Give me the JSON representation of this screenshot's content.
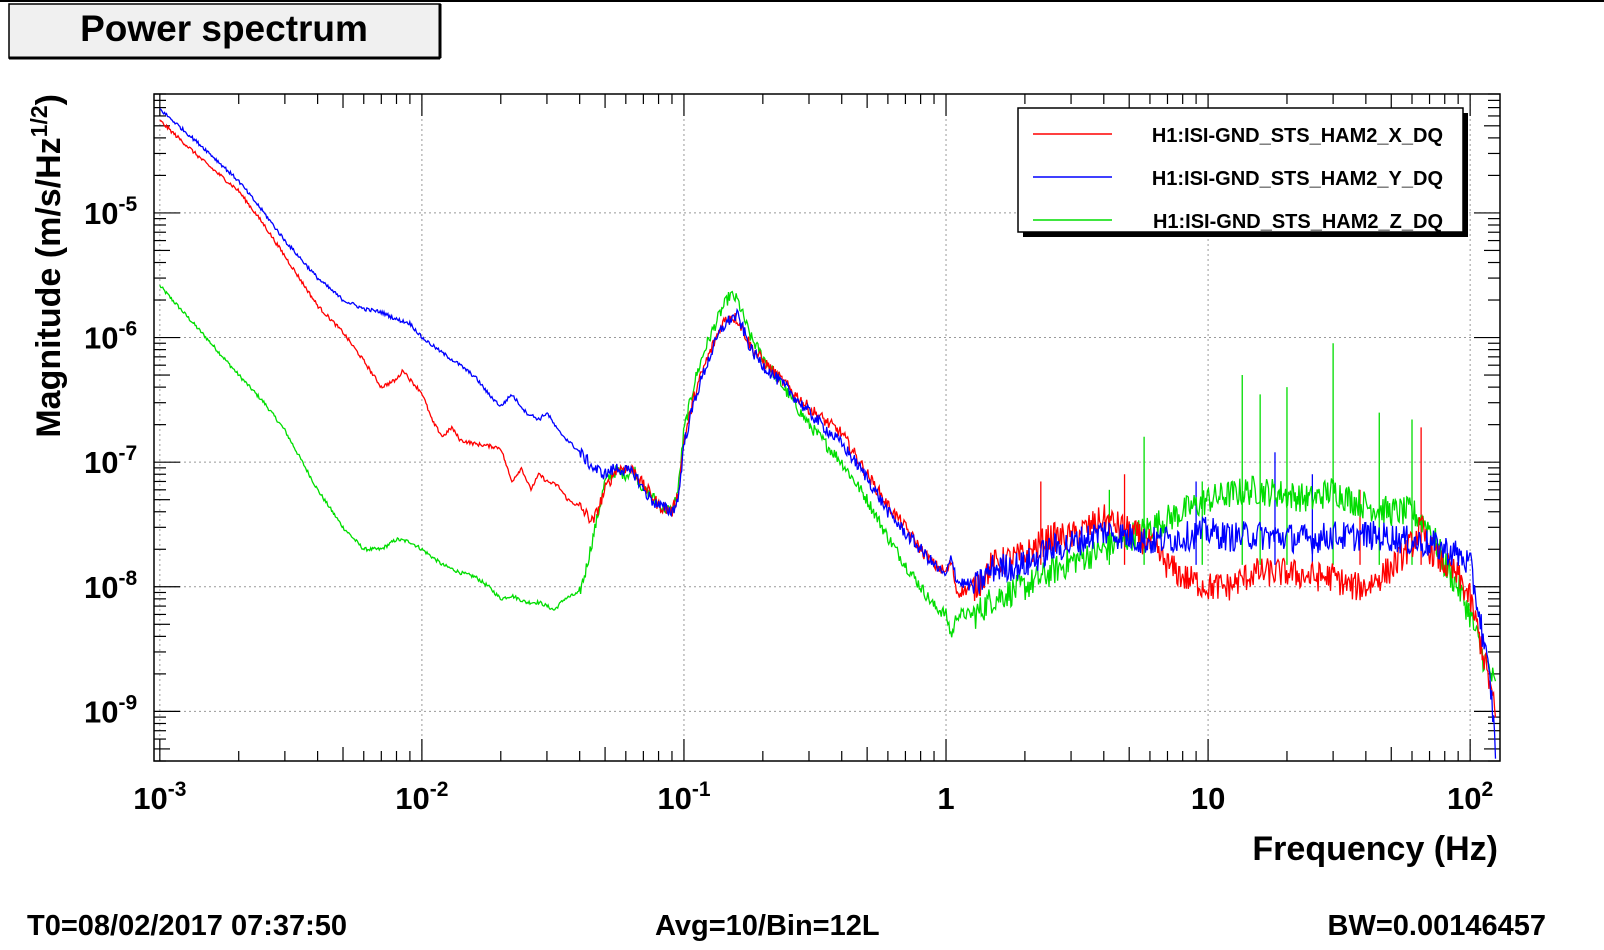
{
  "chart_data": {
    "type": "line",
    "title": "Power spectrum",
    "xlabel": "Frequency (Hz)",
    "ylabel": "Magnitude (m/s/Hz^1/2)",
    "xscale": "log",
    "yscale": "log",
    "xlim": [
      0.00095,
      130
    ],
    "ylim": [
      4e-10,
      9e-05
    ],
    "grid": true,
    "legend_position": "top-right",
    "x_ticks": [
      {
        "value": 0.001,
        "base": "10",
        "exp": "-3"
      },
      {
        "value": 0.01,
        "base": "10",
        "exp": "-2"
      },
      {
        "value": 0.1,
        "base": "10",
        "exp": "-1"
      },
      {
        "value": 1,
        "base": "1",
        "exp": ""
      },
      {
        "value": 10,
        "base": "10",
        "exp": ""
      },
      {
        "value": 100,
        "base": "10",
        "exp": "2"
      }
    ],
    "y_ticks": [
      {
        "value": 1e-05,
        "base": "10",
        "exp": "-5"
      },
      {
        "value": 1e-06,
        "base": "10",
        "exp": "-6"
      },
      {
        "value": 1e-07,
        "base": "10",
        "exp": "-7"
      },
      {
        "value": 1e-08,
        "base": "10",
        "exp": "-8"
      },
      {
        "value": 1e-09,
        "base": "10",
        "exp": "-9"
      }
    ],
    "series": [
      {
        "name": "H1:ISI-GND_STS_HAM2_X_DQ",
        "color": "#ff0000",
        "points": [
          [
            0.001,
            5.5e-05
          ],
          [
            0.0015,
            2.5e-05
          ],
          [
            0.002,
            1.5e-05
          ],
          [
            0.0025,
            8e-06
          ],
          [
            0.003,
            4.5e-06
          ],
          [
            0.004,
            1.8e-06
          ],
          [
            0.005,
            1.1e-06
          ],
          [
            0.006,
            6.5e-07
          ],
          [
            0.007,
            4e-07
          ],
          [
            0.008,
            4.6e-07
          ],
          [
            0.0085,
            5.5e-07
          ],
          [
            0.009,
            4.6e-07
          ],
          [
            0.01,
            3.6e-07
          ],
          [
            0.011,
            2.1e-07
          ],
          [
            0.012,
            1.6e-07
          ],
          [
            0.013,
            1.9e-07
          ],
          [
            0.014,
            1.5e-07
          ],
          [
            0.016,
            1.4e-07
          ],
          [
            0.018,
            1.35e-07
          ],
          [
            0.02,
            1.3e-07
          ],
          [
            0.022,
            7e-08
          ],
          [
            0.024,
            9e-08
          ],
          [
            0.026,
            6e-08
          ],
          [
            0.028,
            8e-08
          ],
          [
            0.03,
            7e-08
          ],
          [
            0.033,
            6.5e-08
          ],
          [
            0.036,
            5e-08
          ],
          [
            0.04,
            4.4e-08
          ],
          [
            0.045,
            3.3e-08
          ],
          [
            0.05,
            6e-08
          ],
          [
            0.055,
            8.8e-08
          ],
          [
            0.06,
            9e-08
          ],
          [
            0.065,
            8.5e-08
          ],
          [
            0.07,
            6.5e-08
          ],
          [
            0.075,
            5.5e-08
          ],
          [
            0.08,
            4.5e-08
          ],
          [
            0.09,
            4e-08
          ],
          [
            0.095,
            5.5e-08
          ],
          [
            0.1,
            1.5e-07
          ],
          [
            0.11,
            3.5e-07
          ],
          [
            0.12,
            6e-07
          ],
          [
            0.13,
            9e-07
          ],
          [
            0.14,
            1.3e-06
          ],
          [
            0.15,
            1.5e-06
          ],
          [
            0.16,
            1.4e-06
          ],
          [
            0.17,
            1.1e-06
          ],
          [
            0.18,
            8.5e-07
          ],
          [
            0.2,
            6.5e-07
          ],
          [
            0.25,
            4e-07
          ],
          [
            0.3,
            2.7e-07
          ],
          [
            0.4,
            1.7e-07
          ],
          [
            0.5,
            8e-08
          ],
          [
            0.6,
            4.5e-08
          ],
          [
            0.7,
            3e-08
          ],
          [
            0.8,
            2e-08
          ],
          [
            0.9,
            1.5e-08
          ],
          [
            1.0,
            1.3e-08
          ],
          [
            1.05,
            1.6e-08
          ],
          [
            1.1,
            9e-09
          ],
          [
            1.3,
            1e-08
          ],
          [
            1.5,
            1.5e-08
          ],
          [
            2.0,
            1.8e-08
          ],
          [
            2.5,
            2.5e-08
          ],
          [
            3.0,
            2.5e-08
          ],
          [
            4.0,
            3.5e-08
          ],
          [
            5.0,
            2.8e-08
          ],
          [
            6.0,
            2.2e-08
          ],
          [
            7.0,
            1.5e-08
          ],
          [
            8.0,
            1.2e-08
          ],
          [
            10.0,
            1e-08
          ],
          [
            12.0,
            1e-08
          ],
          [
            15.0,
            1.3e-08
          ],
          [
            20.0,
            1.3e-08
          ],
          [
            25.0,
            1.2e-08
          ],
          [
            30.0,
            1.2e-08
          ],
          [
            35.0,
            1e-08
          ],
          [
            40.0,
            1e-08
          ],
          [
            50.0,
            1.4e-08
          ],
          [
            60.0,
            2.2e-08
          ],
          [
            65.0,
            3e-08
          ],
          [
            70.0,
            2e-08
          ],
          [
            80.0,
            1.5e-08
          ],
          [
            90.0,
            1.2e-08
          ],
          [
            100.0,
            8e-09
          ],
          [
            110.0,
            3.5e-09
          ],
          [
            120.0,
            1.5e-09
          ],
          [
            125.0,
            9e-10
          ]
        ]
      },
      {
        "name": "H1:ISI-GND_STS_HAM2_Y_DQ",
        "color": "#0000ff",
        "points": [
          [
            0.001,
            6.8e-05
          ],
          [
            0.0015,
            3.2e-05
          ],
          [
            0.002,
            1.8e-05
          ],
          [
            0.0025,
            1e-05
          ],
          [
            0.003,
            6e-06
          ],
          [
            0.004,
            3e-06
          ],
          [
            0.005,
            2e-06
          ],
          [
            0.006,
            1.7e-06
          ],
          [
            0.007,
            1.6e-06
          ],
          [
            0.008,
            1.4e-06
          ],
          [
            0.009,
            1.3e-06
          ],
          [
            0.01,
            1e-06
          ],
          [
            0.012,
            7.5e-07
          ],
          [
            0.014,
            6e-07
          ],
          [
            0.016,
            4.8e-07
          ],
          [
            0.018,
            3.5e-07
          ],
          [
            0.02,
            2.8e-07
          ],
          [
            0.022,
            3.5e-07
          ],
          [
            0.025,
            2.5e-07
          ],
          [
            0.028,
            2.2e-07
          ],
          [
            0.03,
            2.5e-07
          ],
          [
            0.033,
            1.8e-07
          ],
          [
            0.036,
            1.5e-07
          ],
          [
            0.04,
            1.2e-07
          ],
          [
            0.045,
            9e-08
          ],
          [
            0.05,
            8e-08
          ],
          [
            0.055,
            9e-08
          ],
          [
            0.06,
            8.5e-08
          ],
          [
            0.065,
            8e-08
          ],
          [
            0.07,
            6e-08
          ],
          [
            0.075,
            5e-08
          ],
          [
            0.08,
            4.5e-08
          ],
          [
            0.09,
            4e-08
          ],
          [
            0.095,
            5e-08
          ],
          [
            0.1,
            1.4e-07
          ],
          [
            0.11,
            3.2e-07
          ],
          [
            0.12,
            5.5e-07
          ],
          [
            0.13,
            8.5e-07
          ],
          [
            0.14,
            1.2e-06
          ],
          [
            0.15,
            1.4e-06
          ],
          [
            0.16,
            1.5e-06
          ],
          [
            0.17,
            1.1e-06
          ],
          [
            0.18,
            8e-07
          ],
          [
            0.2,
            6e-07
          ],
          [
            0.25,
            3.8e-07
          ],
          [
            0.3,
            2.5e-07
          ],
          [
            0.4,
            1.4e-07
          ],
          [
            0.5,
            7.5e-08
          ],
          [
            0.6,
            4e-08
          ],
          [
            0.7,
            2.7e-08
          ],
          [
            0.8,
            2e-08
          ],
          [
            0.9,
            1.5e-08
          ],
          [
            1.0,
            1.2e-08
          ],
          [
            1.05,
            1.8e-08
          ],
          [
            1.1,
            1.1e-08
          ],
          [
            1.3,
            1e-08
          ],
          [
            1.5,
            1.4e-08
          ],
          [
            2.0,
            1.5e-08
          ],
          [
            2.5,
            2e-08
          ],
          [
            3.0,
            2.2e-08
          ],
          [
            4.0,
            2.8e-08
          ],
          [
            5.0,
            2.5e-08
          ],
          [
            6.0,
            2.3e-08
          ],
          [
            8.0,
            2.5e-08
          ],
          [
            10.0,
            2.8e-08
          ],
          [
            12.0,
            2.5e-08
          ],
          [
            15.0,
            2.6e-08
          ],
          [
            20.0,
            2.5e-08
          ],
          [
            25.0,
            2.4e-08
          ],
          [
            30.0,
            2.6e-08
          ],
          [
            35.0,
            2.5e-08
          ],
          [
            40.0,
            2.6e-08
          ],
          [
            50.0,
            2.5e-08
          ],
          [
            60.0,
            2.3e-08
          ],
          [
            70.0,
            2.2e-08
          ],
          [
            80.0,
            2e-08
          ],
          [
            90.0,
            1.8e-08
          ],
          [
            100.0,
            1.5e-08
          ],
          [
            110.0,
            5e-09
          ],
          [
            120.0,
            1.5e-09
          ],
          [
            125.0,
            5e-10
          ]
        ]
      },
      {
        "name": "H1:ISI-GND_STS_HAM2_Z_DQ",
        "color": "#00dd00",
        "points": [
          [
            0.001,
            2.6e-06
          ],
          [
            0.0015,
            1e-06
          ],
          [
            0.002,
            5e-07
          ],
          [
            0.0025,
            3e-07
          ],
          [
            0.003,
            1.8e-07
          ],
          [
            0.004,
            6e-08
          ],
          [
            0.005,
            3e-08
          ],
          [
            0.006,
            2e-08
          ],
          [
            0.007,
            2e-08
          ],
          [
            0.008,
            2.4e-08
          ],
          [
            0.009,
            2.3e-08
          ],
          [
            0.01,
            2e-08
          ],
          [
            0.012,
            1.5e-08
          ],
          [
            0.014,
            1.3e-08
          ],
          [
            0.016,
            1.2e-08
          ],
          [
            0.018,
            1e-08
          ],
          [
            0.02,
            8e-09
          ],
          [
            0.022,
            8.5e-09
          ],
          [
            0.025,
            7.5e-09
          ],
          [
            0.028,
            7.5e-09
          ],
          [
            0.03,
            7e-09
          ],
          [
            0.032,
            6.5e-09
          ],
          [
            0.035,
            8e-09
          ],
          [
            0.04,
            9e-09
          ],
          [
            0.042,
            1.3e-08
          ],
          [
            0.045,
            2.5e-08
          ],
          [
            0.05,
            7e-08
          ],
          [
            0.055,
            8.5e-08
          ],
          [
            0.06,
            8e-08
          ],
          [
            0.065,
            8.5e-08
          ],
          [
            0.07,
            6e-08
          ],
          [
            0.075,
            5.5e-08
          ],
          [
            0.08,
            4.5e-08
          ],
          [
            0.09,
            4e-08
          ],
          [
            0.095,
            6e-08
          ],
          [
            0.1,
            1.8e-07
          ],
          [
            0.11,
            4.5e-07
          ],
          [
            0.12,
            8e-07
          ],
          [
            0.13,
            1.2e-06
          ],
          [
            0.14,
            1.7e-06
          ],
          [
            0.15,
            2.2e-06
          ],
          [
            0.16,
            2e-06
          ],
          [
            0.17,
            1.4e-06
          ],
          [
            0.18,
            1e-06
          ],
          [
            0.2,
            7e-07
          ],
          [
            0.25,
            3.5e-07
          ],
          [
            0.3,
            2e-07
          ],
          [
            0.4,
            1e-07
          ],
          [
            0.5,
            5e-08
          ],
          [
            0.6,
            2.5e-08
          ],
          [
            0.7,
            1.5e-08
          ],
          [
            0.8,
            1e-08
          ],
          [
            0.9,
            7e-09
          ],
          [
            1.0,
            6e-09
          ],
          [
            1.05,
            4e-09
          ],
          [
            1.1,
            6e-09
          ],
          [
            1.3,
            6e-09
          ],
          [
            1.5,
            8e-09
          ],
          [
            2.0,
            1e-08
          ],
          [
            2.5,
            1.3e-08
          ],
          [
            3.0,
            1.6e-08
          ],
          [
            4.0,
            2e-08
          ],
          [
            5.0,
            2.5e-08
          ],
          [
            6.0,
            3e-08
          ],
          [
            8.0,
            4e-08
          ],
          [
            10.0,
            5e-08
          ],
          [
            12.0,
            5.5e-08
          ],
          [
            15.0,
            6e-08
          ],
          [
            20.0,
            5.5e-08
          ],
          [
            25.0,
            5e-08
          ],
          [
            30.0,
            6e-08
          ],
          [
            35.0,
            5e-08
          ],
          [
            40.0,
            4.5e-08
          ],
          [
            50.0,
            4e-08
          ],
          [
            60.0,
            4e-08
          ],
          [
            70.0,
            3e-08
          ],
          [
            80.0,
            1.5e-08
          ],
          [
            90.0,
            1e-08
          ],
          [
            100.0,
            6e-09
          ],
          [
            110.0,
            3e-09
          ],
          [
            120.0,
            2e-09
          ],
          [
            125.0,
            1.5e-09
          ]
        ]
      }
    ],
    "spikes": [
      {
        "f": 5.7,
        "v": 1.6e-07,
        "color": "#00dd00"
      },
      {
        "f": 13.5,
        "v": 5e-07,
        "color": "#00dd00"
      },
      {
        "f": 15.8,
        "v": 3.5e-07,
        "color": "#00dd00"
      },
      {
        "f": 20.0,
        "v": 4e-07,
        "color": "#00dd00"
      },
      {
        "f": 30.0,
        "v": 9e-07,
        "color": "#00dd00"
      },
      {
        "f": 45.0,
        "v": 2.5e-07,
        "color": "#00dd00"
      },
      {
        "f": 60.0,
        "v": 2.2e-07,
        "color": "#00dd00"
      },
      {
        "f": 4.2,
        "v": 6e-08,
        "color": "#00dd00"
      },
      {
        "f": 9.5,
        "v": 7e-08,
        "color": "#00dd00"
      },
      {
        "f": 2.3,
        "v": 7e-08,
        "color": "#ff0000"
      },
      {
        "f": 4.8,
        "v": 8e-08,
        "color": "#ff0000"
      },
      {
        "f": 65.0,
        "v": 1.9e-07,
        "color": "#ff0000"
      },
      {
        "f": 38.0,
        "v": 6e-08,
        "color": "#ff0000"
      },
      {
        "f": 9.0,
        "v": 7e-08,
        "color": "#0000ff"
      },
      {
        "f": 18.0,
        "v": 1.2e-07,
        "color": "#0000ff"
      },
      {
        "f": 25.0,
        "v": 8e-08,
        "color": "#0000ff"
      }
    ]
  },
  "footer": {
    "t0": "T0=08/02/2017 07:37:50",
    "avg": "Avg=10/Bin=12L",
    "bw": "BW=0.00146457"
  }
}
